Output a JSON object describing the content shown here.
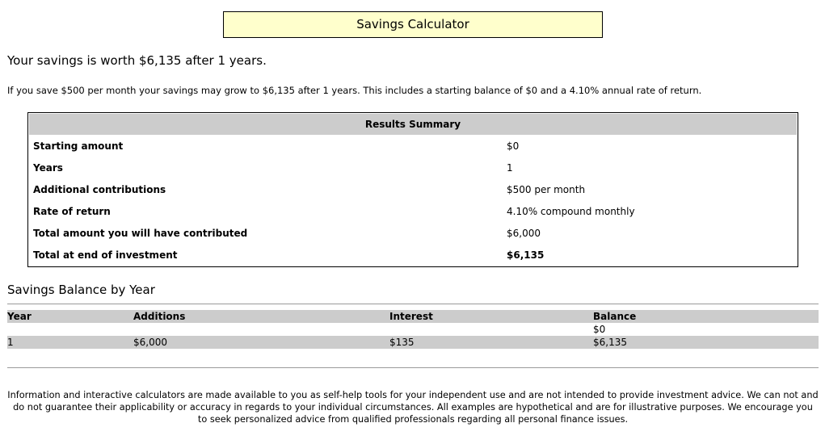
{
  "header": {
    "title": "Savings Calculator"
  },
  "result": {
    "headline": "Your savings is worth $6,135 after 1 years.",
    "intro": "If you save $500 per month your savings may grow to $6,135 after 1 years. This includes a starting balance of $0 and a 4.10% annual rate of return."
  },
  "summary": {
    "title": "Results Summary",
    "rows": [
      {
        "label": "Starting amount",
        "value": "$0"
      },
      {
        "label": "Years",
        "value": "1"
      },
      {
        "label": "Additional contributions",
        "value": "$500 per month"
      },
      {
        "label": "Rate of return",
        "value": "4.10% compound monthly"
      },
      {
        "label": "Total amount you will have contributed",
        "value": "$6,000"
      },
      {
        "label": "Total at end of investment",
        "value": "$6,135"
      }
    ]
  },
  "by_year": {
    "title": "Savings Balance by Year",
    "columns": [
      "Year",
      "Additions",
      "Interest",
      "Balance"
    ],
    "rows": [
      [
        "",
        "",
        "",
        "$0"
      ],
      [
        "1",
        "$6,000",
        "$135",
        "$6,135"
      ]
    ]
  },
  "disclaimer": "Information and interactive calculators are made available to you as self-help tools for your independent use and are not intended to provide investment advice. We can not and do not guarantee their applicability or accuracy in regards to your individual circumstances. All examples are hypothetical and are for illustrative purposes. We encourage you to seek personalized advice from qualified professionals regarding all personal finance issues."
}
